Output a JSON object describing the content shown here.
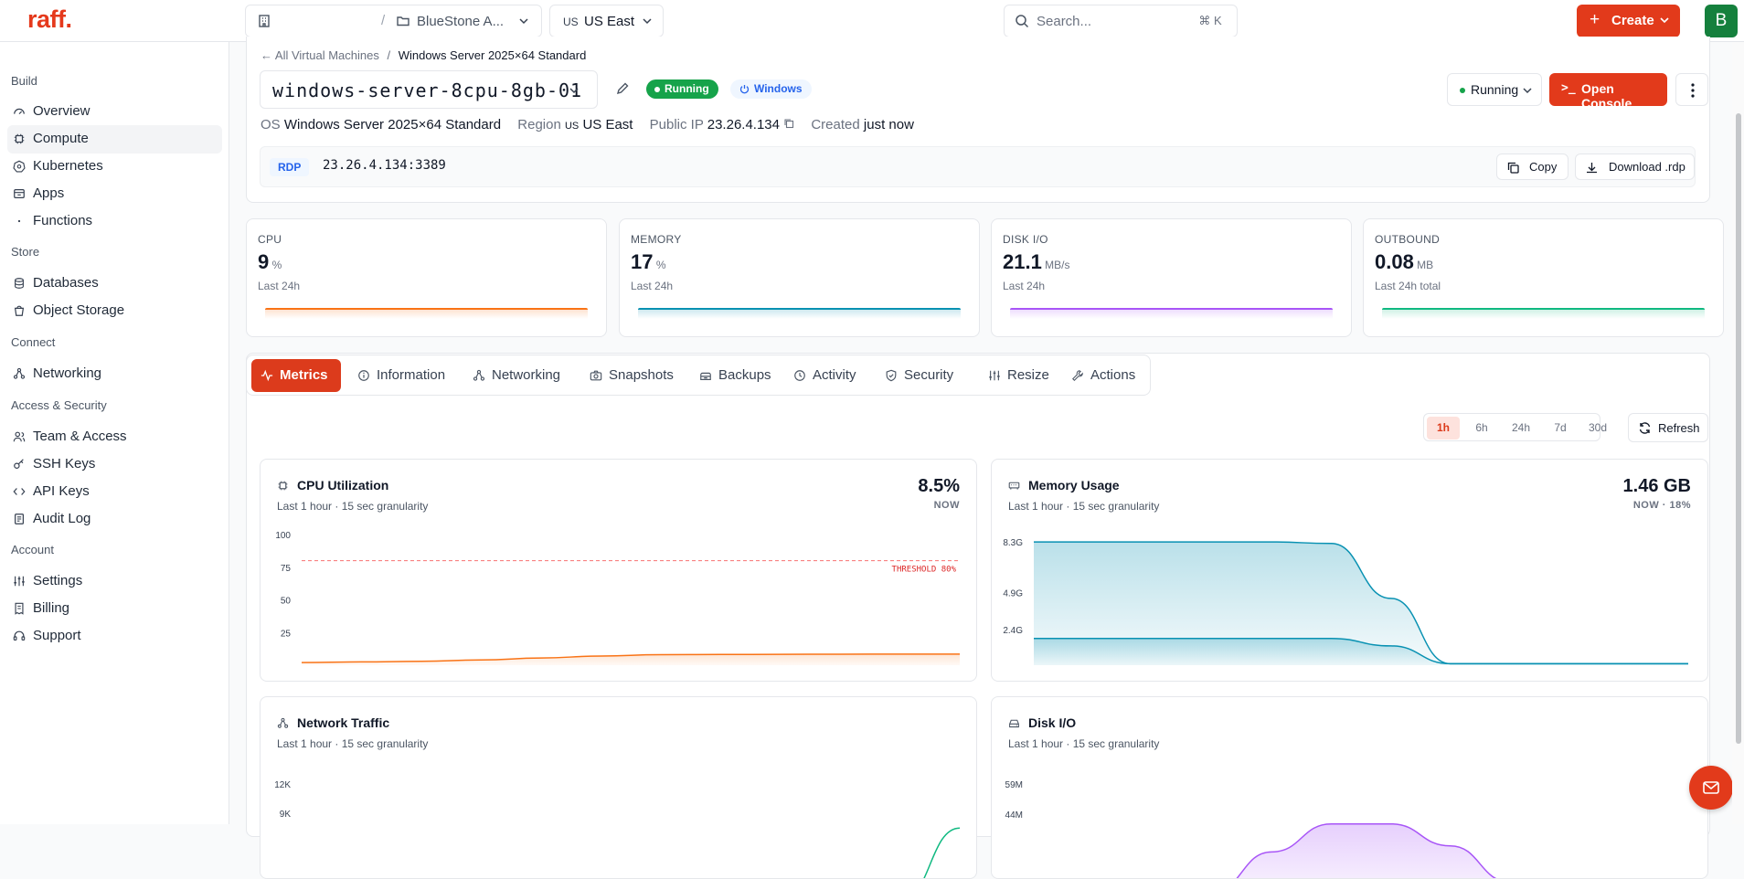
{
  "topbar": {
    "logo": "raff.",
    "project_separator": "/",
    "project_name": "BlueStone A...",
    "region_code": "US",
    "region_name": "US East",
    "search_placeholder": "Search...",
    "search_shortcut": "⌘ K",
    "create_label": "Create",
    "avatar_initial": "B"
  },
  "sidebar": {
    "sections": [
      {
        "title": "Build",
        "items": [
          {
            "label": "Overview",
            "icon": "gauge-icon"
          },
          {
            "label": "Compute",
            "icon": "cpu-icon",
            "active": true
          },
          {
            "label": "Kubernetes",
            "icon": "kubernetes-icon"
          },
          {
            "label": "Apps",
            "icon": "apps-icon"
          },
          {
            "label": "Functions",
            "icon": "function-icon"
          }
        ]
      },
      {
        "title": "Store",
        "items": [
          {
            "label": "Databases",
            "icon": "database-icon"
          },
          {
            "label": "Object Storage",
            "icon": "bucket-icon"
          }
        ]
      },
      {
        "title": "Connect",
        "items": [
          {
            "label": "Networking",
            "icon": "network-icon"
          }
        ]
      },
      {
        "title": "Access & Security",
        "items": [
          {
            "label": "Team & Access",
            "icon": "users-icon"
          },
          {
            "label": "SSH Keys",
            "icon": "key-icon"
          },
          {
            "label": "API Keys",
            "icon": "code-icon"
          },
          {
            "label": "Audit Log",
            "icon": "log-icon"
          }
        ]
      },
      {
        "title": "Account",
        "items": [
          {
            "label": "Settings",
            "icon": "sliders-icon"
          },
          {
            "label": "Billing",
            "icon": "receipt-icon"
          },
          {
            "label": "Support",
            "icon": "headset-icon"
          }
        ]
      }
    ]
  },
  "vm": {
    "breadcrumb_parent": "All Virtual Machines",
    "breadcrumb_separator": "/",
    "breadcrumb_current": "Windows Server 2025×64 Standard",
    "name": "windows-server-8cpu-8gb-01",
    "status_badge": "Running",
    "os_badge": "Windows",
    "state_dropdown": "Running",
    "console_label": "Open Console",
    "meta": {
      "os_label": "OS",
      "os_value": "Windows Server 2025×64 Standard",
      "region_label": "Region",
      "region_code": "US",
      "region_value": "US East",
      "ip_label": "Public IP",
      "ip_value": "23.26.4.134",
      "created_label": "Created",
      "created_value": "just now"
    },
    "rdp": {
      "tag": "RDP",
      "address": "23.26.4.134:3389",
      "copy_label": "Copy",
      "download_label": "Download .rdp"
    }
  },
  "stats": [
    {
      "label": "CPU",
      "value": "9",
      "unit": "%",
      "sub": "Last 24h",
      "color": "#f97316"
    },
    {
      "label": "MEMORY",
      "value": "17",
      "unit": "%",
      "sub": "Last 24h",
      "color": "#0891b2"
    },
    {
      "label": "DISK I/O",
      "value": "21.1",
      "unit": "MB/s",
      "sub": "Last 24h",
      "color": "#a855f7"
    },
    {
      "label": "OUTBOUND",
      "value": "0.08",
      "unit": "MB",
      "sub": "Last 24h total",
      "color": "#10b981"
    }
  ],
  "tabs": [
    {
      "label": "Metrics",
      "icon": "activity-icon",
      "active": true
    },
    {
      "label": "Information",
      "icon": "info-icon"
    },
    {
      "label": "Networking",
      "icon": "network-icon"
    },
    {
      "label": "Snapshots",
      "icon": "camera-icon"
    },
    {
      "label": "Backups",
      "icon": "archive-icon"
    },
    {
      "label": "Activity",
      "icon": "clock-icon"
    },
    {
      "label": "Security",
      "icon": "shield-icon"
    },
    {
      "label": "Resize",
      "icon": "sliders-icon"
    },
    {
      "label": "Actions",
      "icon": "wrench-icon"
    }
  ],
  "ranges": [
    {
      "label": "1h",
      "active": true
    },
    {
      "label": "6h"
    },
    {
      "label": "24h"
    },
    {
      "label": "7d"
    },
    {
      "label": "30d"
    }
  ],
  "refresh_label": "Refresh",
  "chart_data": [
    {
      "type": "line",
      "title": "CPU Utilization",
      "subtitle": "Last 1 hour · 15 sec granularity",
      "now_value": "8.5%",
      "now_label": "NOW",
      "yticks": [
        "100",
        "75",
        "50",
        "25"
      ],
      "ylim": [
        0,
        100
      ],
      "threshold": {
        "value": 80,
        "label": "THRESHOLD 80%"
      },
      "series": [
        {
          "values": [
            2,
            2.5,
            3,
            4,
            5.5,
            7,
            8,
            8.2,
            8.3,
            8.4,
            8.5,
            8.5
          ],
          "color": "#f97316"
        }
      ]
    },
    {
      "type": "area",
      "title": "Memory Usage",
      "subtitle": "Last 1 hour · 15 sec granularity",
      "now_value": "1.46 GB",
      "now_label": "NOW · 18%",
      "yticks": [
        "8.3G",
        "4.9G",
        "2.4G"
      ],
      "ylim": [
        0,
        8.8
      ],
      "series": [
        {
          "values": [
            8.3,
            8.3,
            8.3,
            8.3,
            8.3,
            8.2,
            4.5,
            0.1,
            0.1,
            0.1,
            0.1,
            0.1
          ],
          "color": "#0891b2"
        },
        {
          "values": [
            1.8,
            1.8,
            1.8,
            1.8,
            1.8,
            1.8,
            1.3,
            0.1,
            0.1,
            0.1,
            0.1,
            0.1
          ],
          "color": "#0891b2"
        }
      ]
    },
    {
      "type": "line",
      "title": "Network Traffic",
      "subtitle": "Last 1 hour · 15 sec granularity",
      "yticks": [
        "12K",
        "9K"
      ],
      "ylim": [
        0,
        13
      ],
      "series": [
        {
          "values": [
            0,
            0,
            0,
            0,
            0,
            0,
            0,
            0,
            0,
            0,
            0,
            7.5
          ],
          "color": "#10b981"
        }
      ]
    },
    {
      "type": "area",
      "title": "Disk I/O",
      "subtitle": "Last 1 hour · 15 sec granularity",
      "yticks": [
        "59M",
        "44M"
      ],
      "ylim": [
        0,
        64
      ],
      "series": [
        {
          "values": [
            0,
            0,
            0,
            5,
            25,
            39,
            39,
            28,
            10,
            0,
            0,
            0
          ],
          "color": "#a855f7"
        }
      ]
    }
  ]
}
